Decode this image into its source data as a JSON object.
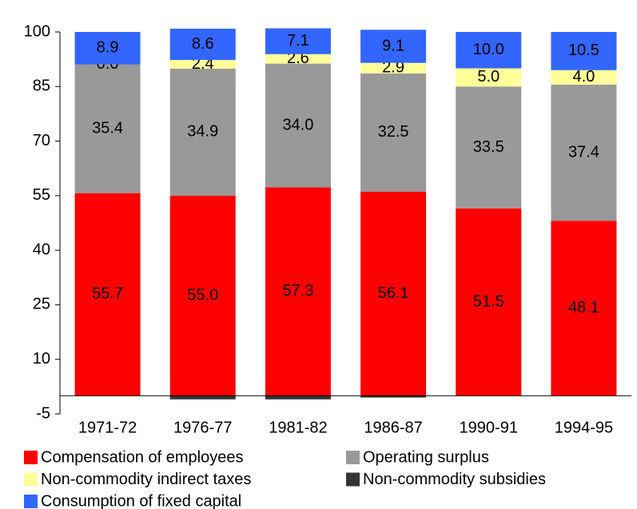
{
  "chart_data": {
    "type": "stacked-bar",
    "categories": [
      "1971-72",
      "1976-77",
      "1981-82",
      "1986-87",
      "1990-91",
      "1994-95"
    ],
    "series": [
      {
        "name": "Compensation of employees",
        "color": "#ff0000",
        "values": [
          55.7,
          55.0,
          57.3,
          56.1,
          51.5,
          48.1
        ],
        "value_labels": [
          "55.7",
          "55.0",
          "57.3",
          "56.1",
          "51.5",
          "48.1"
        ]
      },
      {
        "name": "Operating surplus",
        "color": "#999999",
        "values": [
          35.4,
          34.9,
          34.0,
          32.5,
          33.5,
          37.4
        ],
        "value_labels": [
          "35.4",
          "34.9",
          "34.0",
          "32.5",
          "33.5",
          "37.4"
        ]
      },
      {
        "name": "Non-commodity indirect taxes",
        "color": "#ffff99",
        "values": [
          0.0,
          2.4,
          2.6,
          2.9,
          5.0,
          4.0
        ],
        "value_labels": [
          "0.0",
          "2.4",
          "2.6",
          "2.9",
          "5.0",
          "4.0"
        ]
      },
      {
        "name": "Non-commodity subsidies",
        "color": "#333333",
        "values": [
          0,
          -1,
          -1,
          -0.5,
          0,
          0
        ]
      },
      {
        "name": "Consumption of fixed capital",
        "color": "#3366ff",
        "values": [
          8.9,
          8.6,
          7.1,
          9.1,
          10.0,
          10.5
        ],
        "value_labels": [
          "8.9",
          "8.6",
          "7.1",
          "9.1",
          "10.0",
          "10.5"
        ]
      }
    ],
    "ylim": [
      -5,
      100
    ],
    "yticks": [
      -5,
      10,
      25,
      40,
      55,
      70,
      85,
      100
    ]
  }
}
